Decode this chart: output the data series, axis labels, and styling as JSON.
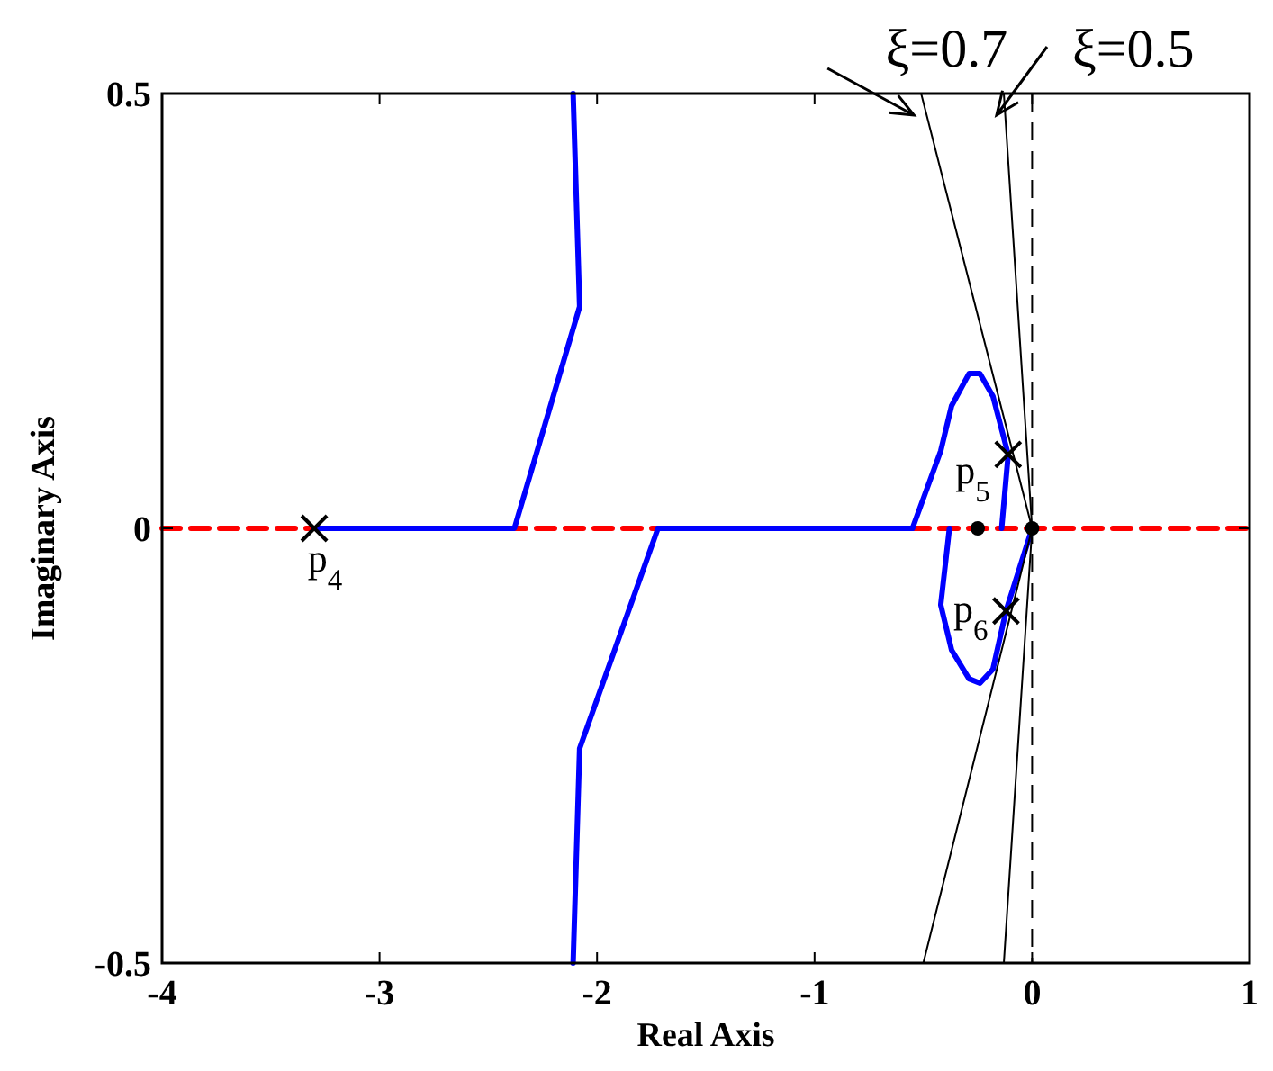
{
  "chart_data": {
    "type": "line",
    "xlabel": "Real Axis",
    "ylabel": "Imaginary Axis",
    "xlim": [
      -4,
      1
    ],
    "xticks": [
      -4,
      -3,
      -2,
      -1,
      0,
      1
    ],
    "ylim": [
      -0.5,
      0.5
    ],
    "yticks": [
      -0.5,
      0,
      0.5
    ],
    "grid": false,
    "series": [
      {
        "color": "#ff0000",
        "line_style": "dashed",
        "x": [
          -4,
          1
        ],
        "values": [
          0,
          0
        ]
      },
      {
        "color": "#0000ff",
        "x": [
          -3.3,
          -2.38,
          -2.08,
          -2.11
        ],
        "values": [
          0,
          0,
          0.255,
          0.5
        ]
      },
      {
        "color": "#0000ff",
        "x": [
          -1.72,
          -2.08,
          -2.11
        ],
        "values": [
          0,
          -0.253,
          -0.5
        ]
      },
      {
        "color": "#0000ff",
        "x": [
          -1.72,
          -0.55
        ],
        "values": [
          0,
          0
        ]
      },
      {
        "color": "#0000ff",
        "x": [
          -0.55,
          -0.42,
          -0.37,
          -0.29,
          -0.24,
          -0.18,
          -0.11,
          -0.14
        ],
        "values": [
          0,
          0.089,
          0.141,
          0.178,
          0.178,
          0.152,
          0.085,
          0
        ]
      },
      {
        "color": "#0000ff",
        "x": [
          -0.38,
          -0.42,
          -0.37,
          -0.29,
          -0.24,
          -0.18,
          -0.12,
          0
        ],
        "values": [
          0,
          -0.088,
          -0.14,
          -0.173,
          -0.178,
          -0.162,
          -0.095,
          0
        ]
      },
      {
        "color": "#000000",
        "x": [
          -0.51,
          0,
          -0.5
        ],
        "values": [
          0.5,
          0,
          -0.5
        ]
      },
      {
        "color": "#000000",
        "x": [
          -0.13,
          0,
          -0.13
        ],
        "values": [
          0.5,
          0,
          -0.5
        ]
      },
      {
        "type": "scatter",
        "marker": "cross",
        "color": "#000000",
        "x": [
          -3.3,
          -0.11,
          -0.12
        ],
        "values": [
          0,
          0.085,
          -0.095
        ]
      },
      {
        "type": "scatter",
        "marker": "circle",
        "color": "#000000",
        "x": [
          -0.25,
          0
        ],
        "values": [
          0,
          0
        ]
      }
    ],
    "ref_lines": [
      {
        "axis": "x",
        "value": 0,
        "color": "#000000",
        "line_style": "dashed"
      }
    ],
    "annotations": [
      {
        "text": "ξ=0.7",
        "x": -0.51,
        "y": 0.5
      },
      {
        "text": "ξ=0.5",
        "x": -0.13,
        "y": 0.5
      },
      {
        "text": "p$_{4}$",
        "x": -3.3,
        "y": 0
      },
      {
        "text": "p$_{5}$",
        "x": -0.11,
        "y": 0.085
      },
      {
        "text": "p$_{6}$",
        "x": -0.12,
        "y": -0.095
      }
    ]
  }
}
